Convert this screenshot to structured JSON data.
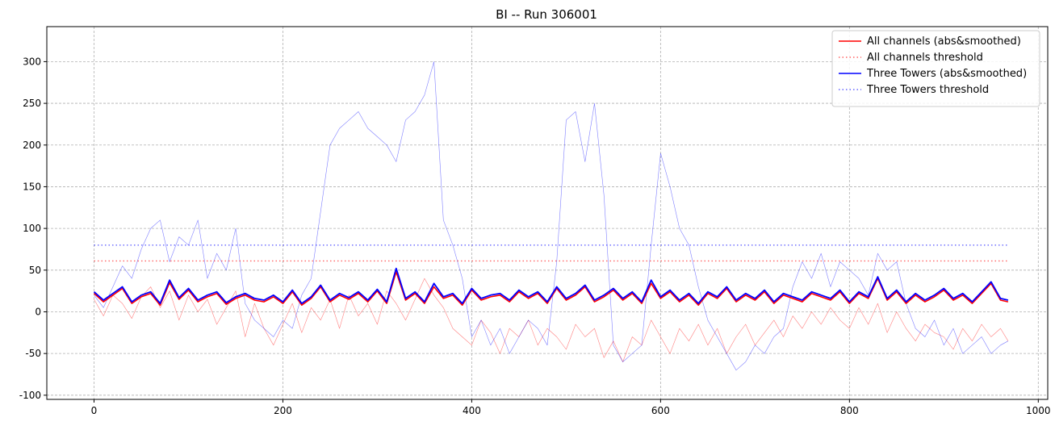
{
  "chart_data": {
    "type": "line",
    "title": "BI -- Run 306001",
    "xlabel": "",
    "ylabel": "",
    "xlim": [
      -50,
      1010
    ],
    "ylim": [
      -105,
      342
    ],
    "xticks": [
      0,
      200,
      400,
      600,
      800,
      1000
    ],
    "yticks": [
      -100,
      -50,
      0,
      50,
      100,
      150,
      200,
      250,
      300
    ],
    "grid": true,
    "legend_position": "top-right",
    "series": [
      {
        "name": "All channels (abs&smoothed)",
        "color": "#ff0000",
        "style": "solid",
        "width": 1.6,
        "x": [
          0,
          10,
          20,
          30,
          40,
          50,
          60,
          70,
          80,
          90,
          100,
          110,
          120,
          130,
          140,
          150,
          160,
          170,
          180,
          190,
          200,
          210,
          220,
          230,
          240,
          250,
          260,
          270,
          280,
          290,
          300,
          310,
          320,
          330,
          340,
          350,
          360,
          370,
          380,
          390,
          400,
          410,
          420,
          430,
          440,
          450,
          460,
          470,
          480,
          490,
          500,
          510,
          520,
          530,
          540,
          550,
          560,
          570,
          580,
          590,
          600,
          610,
          620,
          630,
          640,
          650,
          660,
          670,
          680,
          690,
          700,
          710,
          720,
          730,
          740,
          750,
          760,
          770,
          780,
          790,
          800,
          810,
          820,
          830,
          840,
          850,
          860,
          870,
          880,
          890,
          900,
          910,
          920,
          930,
          940,
          950,
          960,
          968
        ],
        "y": [
          22,
          12,
          20,
          28,
          10,
          18,
          22,
          8,
          35,
          15,
          26,
          12,
          18,
          22,
          9,
          16,
          20,
          14,
          12,
          18,
          10,
          24,
          8,
          16,
          30,
          12,
          20,
          15,
          22,
          12,
          25,
          10,
          48,
          14,
          22,
          10,
          30,
          16,
          20,
          8,
          26,
          14,
          18,
          20,
          12,
          24,
          16,
          22,
          10,
          28,
          14,
          20,
          30,
          12,
          18,
          26,
          14,
          22,
          10,
          34,
          16,
          24,
          12,
          20,
          8,
          22,
          16,
          28,
          12,
          20,
          14,
          24,
          10,
          20,
          16,
          12,
          22,
          18,
          14,
          24,
          10,
          22,
          16,
          40,
          14,
          24,
          10,
          20,
          12,
          18,
          26,
          14,
          20,
          10,
          22,
          34,
          14,
          12
        ]
      },
      {
        "name": "All channels threshold",
        "color": "#ff0000",
        "style": "dotted",
        "width": 1.4,
        "opacity": 0.6,
        "x": [
          0,
          968
        ],
        "y": [
          61,
          61
        ]
      },
      {
        "name": "Three Towers (abs&smoothed)",
        "color": "#0000ff",
        "style": "solid",
        "width": 1.8,
        "x": [
          0,
          10,
          20,
          30,
          40,
          50,
          60,
          70,
          80,
          90,
          100,
          110,
          120,
          130,
          140,
          150,
          160,
          170,
          180,
          190,
          200,
          210,
          220,
          230,
          240,
          250,
          260,
          270,
          280,
          290,
          300,
          310,
          320,
          330,
          340,
          350,
          360,
          370,
          380,
          390,
          400,
          410,
          420,
          430,
          440,
          450,
          460,
          470,
          480,
          490,
          500,
          510,
          520,
          530,
          540,
          550,
          560,
          570,
          580,
          590,
          600,
          610,
          620,
          630,
          640,
          650,
          660,
          670,
          680,
          690,
          700,
          710,
          720,
          730,
          740,
          750,
          760,
          770,
          780,
          790,
          800,
          810,
          820,
          830,
          840,
          850,
          860,
          870,
          880,
          890,
          900,
          910,
          920,
          930,
          940,
          950,
          960,
          968
        ],
        "y": [
          24,
          14,
          22,
          30,
          12,
          20,
          24,
          10,
          38,
          17,
          28,
          14,
          20,
          24,
          11,
          18,
          22,
          16,
          14,
          20,
          12,
          26,
          10,
          18,
          32,
          14,
          22,
          17,
          24,
          14,
          27,
          12,
          52,
          16,
          24,
          12,
          34,
          18,
          22,
          10,
          28,
          16,
          20,
          22,
          14,
          26,
          18,
          24,
          12,
          30,
          16,
          22,
          32,
          14,
          20,
          28,
          16,
          24,
          12,
          38,
          18,
          26,
          14,
          22,
          10,
          24,
          18,
          30,
          14,
          22,
          16,
          26,
          12,
          22,
          18,
          14,
          24,
          20,
          16,
          26,
          12,
          24,
          18,
          42,
          16,
          26,
          12,
          22,
          14,
          20,
          28,
          16,
          22,
          12,
          24,
          36,
          16,
          14
        ]
      },
      {
        "name": "Three Towers threshold",
        "color": "#0000ff",
        "style": "dotted",
        "width": 1.4,
        "opacity": 0.6,
        "x": [
          0,
          968
        ],
        "y": [
          80,
          80
        ]
      },
      {
        "name": "",
        "color": "#ff0000",
        "style": "solid",
        "width": 0.6,
        "opacity": 0.5,
        "x": [
          0,
          10,
          20,
          30,
          40,
          50,
          60,
          70,
          80,
          90,
          100,
          110,
          120,
          130,
          140,
          150,
          160,
          170,
          180,
          190,
          200,
          210,
          220,
          230,
          240,
          250,
          260,
          270,
          280,
          290,
          300,
          310,
          320,
          330,
          340,
          350,
          360,
          370,
          380,
          390,
          400,
          410,
          420,
          430,
          440,
          450,
          460,
          470,
          480,
          490,
          500,
          510,
          520,
          530,
          540,
          550,
          560,
          570,
          580,
          590,
          600,
          610,
          620,
          630,
          640,
          650,
          660,
          670,
          680,
          690,
          700,
          710,
          720,
          730,
          740,
          750,
          760,
          770,
          780,
          790,
          800,
          810,
          820,
          830,
          840,
          850,
          860,
          870,
          880,
          890,
          900,
          910,
          920,
          930,
          940,
          950,
          960,
          968
        ],
        "y": [
          15,
          -5,
          20,
          10,
          -8,
          18,
          30,
          5,
          25,
          -10,
          20,
          0,
          15,
          -15,
          5,
          25,
          -30,
          10,
          -20,
          -40,
          -15,
          10,
          -25,
          5,
          -10,
          15,
          -20,
          20,
          -5,
          10,
          -15,
          25,
          10,
          -10,
          15,
          40,
          20,
          5,
          -20,
          -30,
          -40,
          -10,
          -25,
          -50,
          -20,
          -30,
          -10,
          -40,
          -20,
          -30,
          -45,
          -15,
          -30,
          -20,
          -55,
          -35,
          -60,
          -30,
          -40,
          -10,
          -30,
          -50,
          -20,
          -35,
          -15,
          -40,
          -20,
          -50,
          -30,
          -15,
          -40,
          -25,
          -10,
          -30,
          -5,
          -20,
          0,
          -15,
          5,
          -10,
          -20,
          5,
          -15,
          10,
          -25,
          0,
          -20,
          -35,
          -15,
          -25,
          -30,
          -45,
          -20,
          -35,
          -15,
          -30,
          -20,
          -35
        ]
      },
      {
        "name": "",
        "color": "#0000ff",
        "style": "solid",
        "width": 0.6,
        "opacity": 0.5,
        "x": [
          0,
          10,
          20,
          30,
          40,
          50,
          60,
          70,
          80,
          90,
          100,
          110,
          120,
          130,
          140,
          150,
          160,
          170,
          180,
          190,
          200,
          210,
          220,
          230,
          240,
          250,
          260,
          270,
          280,
          290,
          300,
          310,
          320,
          330,
          340,
          350,
          360,
          370,
          380,
          390,
          400,
          410,
          420,
          430,
          440,
          450,
          460,
          470,
          480,
          490,
          500,
          510,
          520,
          530,
          540,
          550,
          560,
          570,
          580,
          590,
          600,
          610,
          620,
          630,
          640,
          650,
          660,
          670,
          680,
          690,
          700,
          710,
          720,
          730,
          740,
          750,
          760,
          770,
          780,
          790,
          800,
          810,
          820,
          830,
          840,
          850,
          860,
          870,
          880,
          890,
          900,
          910,
          920,
          930,
          940,
          950,
          960,
          968
        ],
        "y": [
          20,
          5,
          30,
          55,
          40,
          75,
          100,
          110,
          60,
          90,
          80,
          110,
          40,
          70,
          50,
          100,
          10,
          -10,
          -20,
          -30,
          -10,
          -20,
          20,
          40,
          120,
          200,
          220,
          230,
          240,
          220,
          210,
          200,
          180,
          230,
          240,
          260,
          300,
          110,
          80,
          40,
          -30,
          -10,
          -40,
          -20,
          -50,
          -30,
          -10,
          -20,
          -40,
          60,
          230,
          240,
          180,
          250,
          140,
          -40,
          -60,
          -50,
          -40,
          80,
          190,
          150,
          100,
          80,
          30,
          -10,
          -30,
          -50,
          -70,
          -60,
          -40,
          -50,
          -30,
          -20,
          30,
          60,
          40,
          70,
          30,
          60,
          50,
          40,
          20,
          70,
          50,
          60,
          10,
          -20,
          -30,
          -10,
          -40,
          -20,
          -50,
          -40,
          -30,
          -50,
          -40,
          -35
        ]
      }
    ]
  }
}
